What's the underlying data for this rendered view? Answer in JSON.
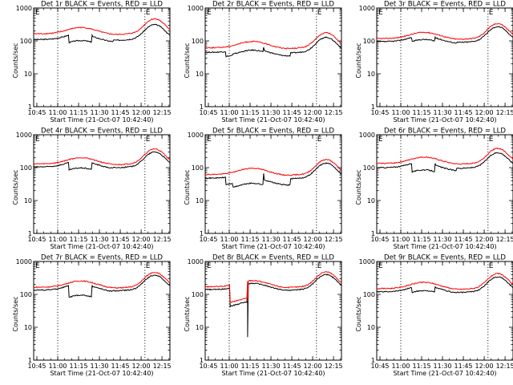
{
  "figure": {
    "ylabel": "Counts/sec",
    "xlabel": "Start Time (21-Oct-07 10:42:40)",
    "series_colors": {
      "events": "#000000",
      "lld": "#ff0000"
    },
    "x_ticks": [
      "10:45",
      "11:00",
      "11:15",
      "11:30",
      "11:45",
      "12:00",
      "12:15"
    ],
    "y_ticks": [
      "1",
      "10",
      "100",
      "1000"
    ],
    "x_range_minutes": [
      0,
      98
    ],
    "y_range_log": [
      1,
      1000
    ],
    "markers": {
      "left_label": "E",
      "right_label": "E",
      "dotted_lines_minutes": [
        17.3,
        80
      ]
    }
  },
  "chart_data": [
    {
      "type": "line",
      "title": "Det 1r BLACK = Events, RED = LLD",
      "series": [
        {
          "name": "Events",
          "baseline": 110,
          "dips": [
            [
              25.5,
              41.7,
              0.6
            ],
            [
              42.3,
              57,
              0.9
            ]
          ],
          "drops": []
        },
        {
          "name": "LLD",
          "baseline": 165,
          "dips": [],
          "drops": []
        }
      ]
    },
    {
      "type": "line",
      "title": "Det 2r BLACK = Events, RED = LLD",
      "series": [
        {
          "name": "Events",
          "baseline": 45,
          "dips": [
            [
              15,
              19.5,
              0.7
            ],
            [
              20,
              41.7,
              0.75
            ],
            [
              42.3,
              61,
              0.82
            ]
          ],
          "drops": []
        },
        {
          "name": "LLD",
          "baseline": 62,
          "dips": [],
          "drops": []
        }
      ]
    },
    {
      "type": "line",
      "title": "Det 3r BLACK = Events, RED = LLD",
      "series": [
        {
          "name": "Events",
          "baseline": 95,
          "dips": [
            [
              25.5,
              41.7,
              0.75
            ],
            [
              42.3,
              57,
              0.95
            ]
          ],
          "drops": []
        },
        {
          "name": "LLD",
          "baseline": 118,
          "dips": [],
          "drops": []
        }
      ]
    },
    {
      "type": "line",
      "title": "Det 4r BLACK = Events, RED = LLD",
      "series": [
        {
          "name": "Events",
          "baseline": 105,
          "dips": [
            [
              25.5,
              41.7,
              0.6
            ],
            [
              42.3,
              57,
              0.95
            ]
          ],
          "drops": []
        },
        {
          "name": "LLD",
          "baseline": 130,
          "dips": [],
          "drops": []
        }
      ]
    },
    {
      "type": "line",
      "title": "Det 5r BLACK = Events, RED = LLD",
      "series": [
        {
          "name": "Events",
          "baseline": 48,
          "dips": [
            [
              15,
              19.5,
              0.6
            ],
            [
              20,
              41.7,
              0.45
            ],
            [
              42.3,
              61,
              0.65
            ]
          ],
          "drops": []
        },
        {
          "name": "LLD",
          "baseline": 62,
          "dips": [],
          "drops": []
        }
      ]
    },
    {
      "type": "line",
      "title": "Det 6r BLACK = Events, RED = LLD",
      "series": [
        {
          "name": "Events",
          "baseline": 100,
          "dips": [
            [
              25.5,
              41.7,
              0.55
            ],
            [
              42.3,
              57,
              0.85
            ]
          ],
          "drops": []
        },
        {
          "name": "LLD",
          "baseline": 135,
          "dips": [],
          "drops": []
        }
      ]
    },
    {
      "type": "line",
      "title": "Det 7r BLACK = Events, RED = LLD",
      "series": [
        {
          "name": "Events",
          "baseline": 135,
          "dips": [
            [
              25.5,
              41.7,
              0.45
            ],
            [
              42.3,
              57,
              0.95
            ]
          ],
          "drops": []
        },
        {
          "name": "LLD",
          "baseline": 165,
          "dips": [],
          "drops": []
        }
      ]
    },
    {
      "type": "line",
      "title": "Det 8r BLACK = Events, RED = LLD",
      "series": [
        {
          "name": "Events",
          "baseline": 140,
          "dips": [
            [
              18,
              30,
              0.28
            ]
          ],
          "drops": [
            [
              30.3,
              5
            ]
          ]
        },
        {
          "name": "LLD",
          "baseline": 170,
          "dips": [
            [
              18,
              30,
              0.3
            ]
          ],
          "drops": [
            [
              21,
              60
            ],
            [
              30.3,
              60
            ]
          ]
        }
      ]
    },
    {
      "type": "line",
      "title": "Det 9r BLACK = Events, RED = LLD",
      "series": [
        {
          "name": "Events",
          "baseline": 120,
          "dips": [
            [
              25.5,
              41.7,
              0.7
            ],
            [
              42.3,
              57,
              0.98
            ]
          ],
          "drops": []
        },
        {
          "name": "LLD",
          "baseline": 150,
          "dips": [],
          "drops": []
        }
      ]
    }
  ]
}
